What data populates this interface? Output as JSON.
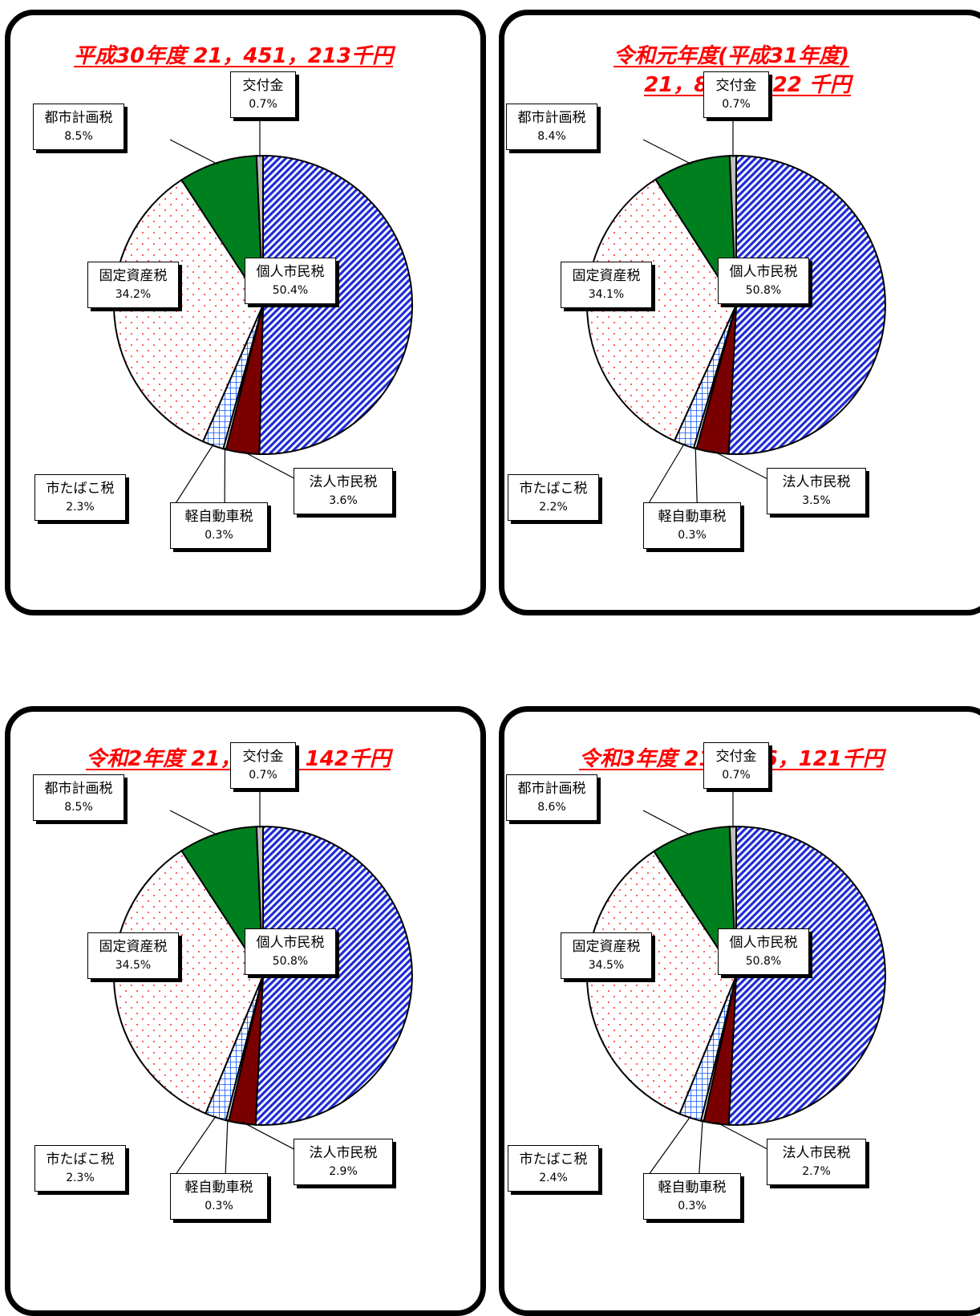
{
  "colors": {
    "title": "#ff0000",
    "kojin": "#1f2bd6",
    "hojin": "#7a0000",
    "kei": "#ffffff",
    "tabako": "#0a55ff",
    "kotei": "#ff2a2a",
    "toshi": "#007f1f",
    "kofu": "#bfbfbf"
  },
  "chart_data": [
    {
      "type": "pie",
      "title": "平成30年度 21，451，213千円",
      "title_line2": "",
      "slices": [
        {
          "label": "個人市民税",
          "value": 50.4,
          "percent_text": "50.4%",
          "pattern": "diagonal-blue"
        },
        {
          "label": "法人市民税",
          "value": 3.6,
          "percent_text": "3.6%",
          "pattern": "solid-darkred"
        },
        {
          "label": "軽自動車税",
          "value": 0.3,
          "percent_text": "0.3%",
          "pattern": "white"
        },
        {
          "label": "市たばこ税",
          "value": 2.3,
          "percent_text": "2.3%",
          "pattern": "grid-blue"
        },
        {
          "label": "固定資産税",
          "value": 34.2,
          "percent_text": "34.2%",
          "pattern": "dots-red"
        },
        {
          "label": "都市計画税",
          "value": 8.5,
          "percent_text": "8.5%",
          "pattern": "solid-green"
        },
        {
          "label": "交付金",
          "value": 0.7,
          "percent_text": "0.7%",
          "pattern": "solid-gray"
        }
      ]
    },
    {
      "type": "pie",
      "title": "令和元年度(平成31年度)",
      "title_line2": "21，867，722 千円",
      "slices": [
        {
          "label": "個人市民税",
          "value": 50.8,
          "percent_text": "50.8%",
          "pattern": "diagonal-blue"
        },
        {
          "label": "法人市民税",
          "value": 3.5,
          "percent_text": "3.5%",
          "pattern": "solid-darkred"
        },
        {
          "label": "軽自動車税",
          "value": 0.3,
          "percent_text": "0.3%",
          "pattern": "white"
        },
        {
          "label": "市たばこ税",
          "value": 2.2,
          "percent_text": "2.2%",
          "pattern": "grid-blue"
        },
        {
          "label": "固定資産税",
          "value": 34.1,
          "percent_text": "34.1%",
          "pattern": "dots-red"
        },
        {
          "label": "都市計画税",
          "value": 8.4,
          "percent_text": "8.4%",
          "pattern": "solid-green"
        },
        {
          "label": "交付金",
          "value": 0.7,
          "percent_text": "0.7%",
          "pattern": "solid-gray"
        }
      ]
    },
    {
      "type": "pie",
      "title": "令和2年度 21，827，142千円",
      "title_line2": "",
      "slices": [
        {
          "label": "個人市民税",
          "value": 50.8,
          "percent_text": "50.8%",
          "pattern": "diagonal-blue"
        },
        {
          "label": "法人市民税",
          "value": 2.9,
          "percent_text": "2.9%",
          "pattern": "solid-darkred"
        },
        {
          "label": "軽自動車税",
          "value": 0.3,
          "percent_text": "0.3%",
          "pattern": "white"
        },
        {
          "label": "市たばこ税",
          "value": 2.3,
          "percent_text": "2.3%",
          "pattern": "grid-blue"
        },
        {
          "label": "固定資産税",
          "value": 34.5,
          "percent_text": "34.5%",
          "pattern": "dots-red"
        },
        {
          "label": "都市計画税",
          "value": 8.5,
          "percent_text": "8.5%",
          "pattern": "solid-green"
        },
        {
          "label": "交付金",
          "value": 0.7,
          "percent_text": "0.7%",
          "pattern": "solid-gray"
        }
      ]
    },
    {
      "type": "pie",
      "title": "令和3年度 21，986，121千円",
      "title_line2": "",
      "slices": [
        {
          "label": "個人市民税",
          "value": 50.8,
          "percent_text": "50.8%",
          "pattern": "diagonal-blue"
        },
        {
          "label": "法人市民税",
          "value": 2.7,
          "percent_text": "2.7%",
          "pattern": "solid-darkred"
        },
        {
          "label": "軽自動車税",
          "value": 0.3,
          "percent_text": "0.3%",
          "pattern": "white"
        },
        {
          "label": "市たばこ税",
          "value": 2.4,
          "percent_text": "2.4%",
          "pattern": "grid-blue"
        },
        {
          "label": "固定資産税",
          "value": 34.5,
          "percent_text": "34.5%",
          "pattern": "dots-red"
        },
        {
          "label": "都市計画税",
          "value": 8.6,
          "percent_text": "8.6%",
          "pattern": "solid-green"
        },
        {
          "label": "交付金",
          "value": 0.7,
          "percent_text": "0.7%",
          "pattern": "solid-gray"
        }
      ]
    }
  ]
}
